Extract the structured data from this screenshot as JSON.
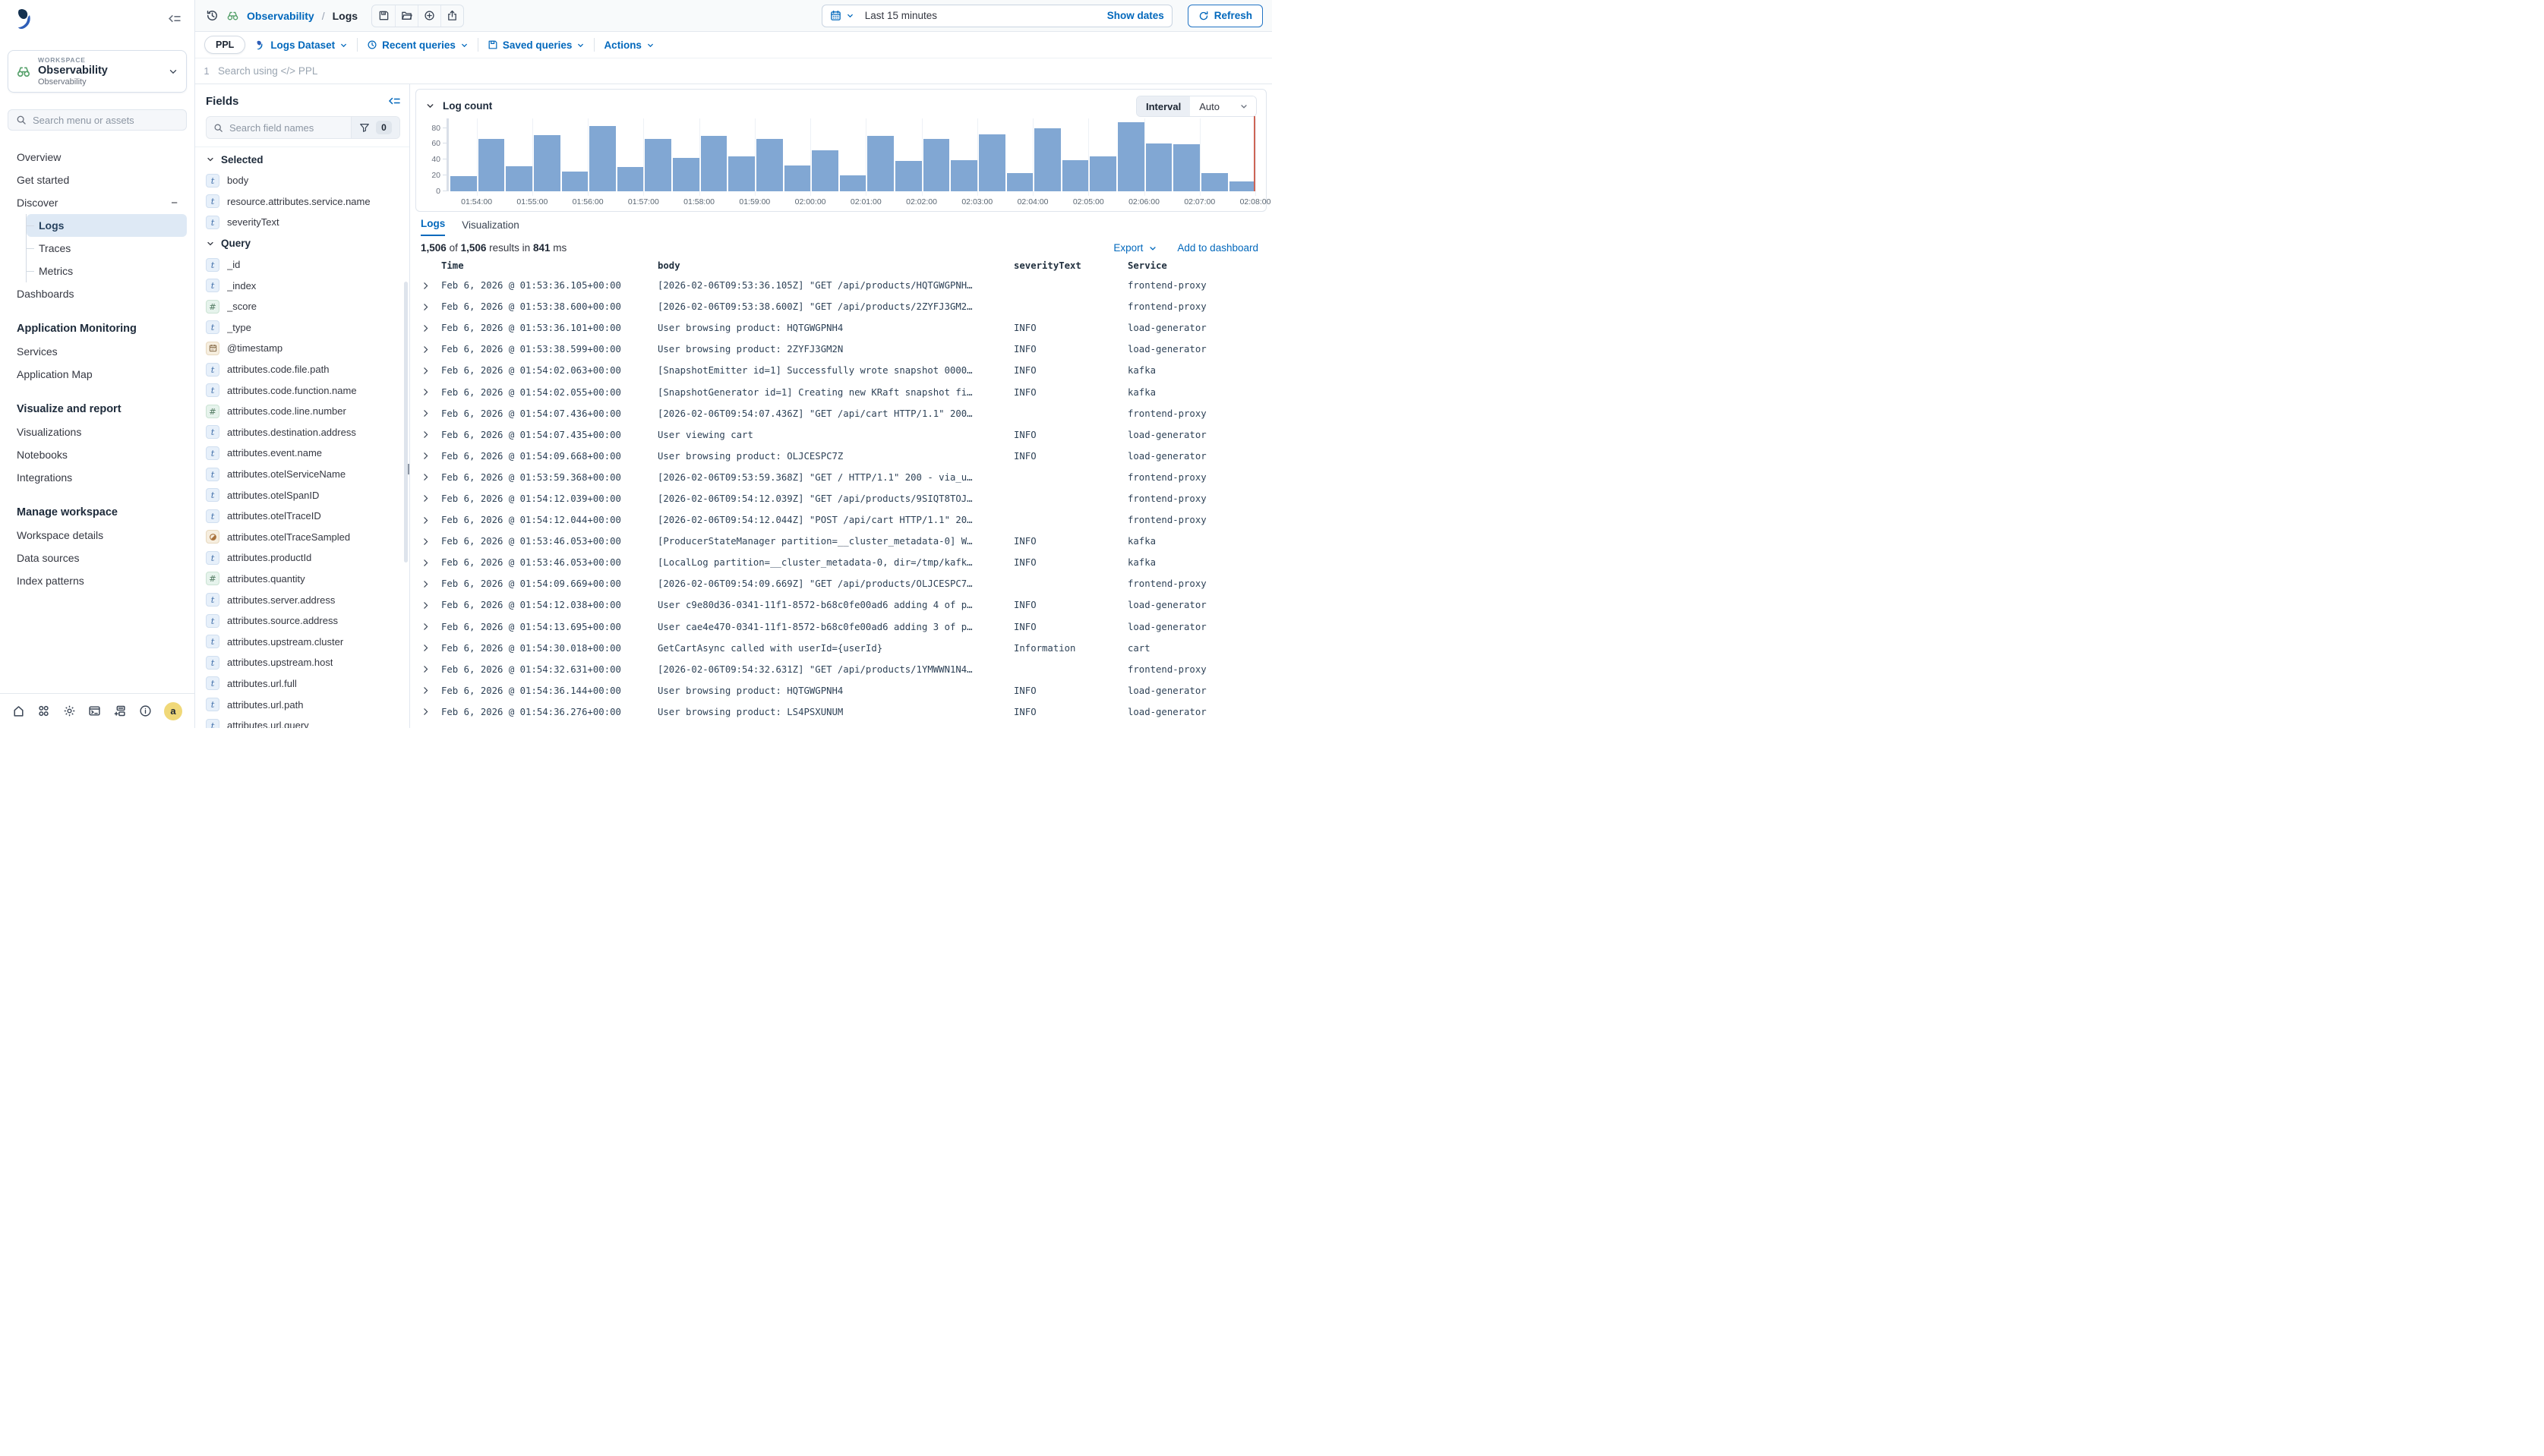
{
  "colors": {
    "accent": "#0268BC",
    "bar": "#81A7D3",
    "time_marker": "#CD6455",
    "selected_nav_bg": "#DEE9F5",
    "avatar_bg": "#F0D878"
  },
  "topbar": {
    "breadcrumb": {
      "app": "Observability",
      "separator": "/",
      "page": "Logs"
    },
    "time_range": "Last 15 minutes",
    "show_dates_label": "Show dates",
    "refresh_label": "Refresh"
  },
  "querybar": {
    "language": "PPL",
    "dataset_label": "Logs Dataset",
    "recent_label": "Recent queries",
    "saved_label": "Saved queries",
    "actions_label": "Actions",
    "line_number": "1",
    "placeholder": "Search using </> PPL"
  },
  "sidebar": {
    "workspace": {
      "eyebrow": "WORKSPACE",
      "name": "Observability",
      "subtitle": "Observability"
    },
    "search_placeholder": "Search menu or assets",
    "nav": [
      {
        "type": "item",
        "label": "Overview"
      },
      {
        "type": "item",
        "label": "Get started"
      },
      {
        "type": "item",
        "label": "Discover",
        "collapse_glyph": "−"
      },
      {
        "type": "subitem",
        "label": "Logs",
        "selected": true
      },
      {
        "type": "subitem",
        "label": "Traces"
      },
      {
        "type": "subitem",
        "label": "Metrics"
      },
      {
        "type": "item",
        "label": "Dashboards"
      },
      {
        "type": "header",
        "label": "Application Monitoring"
      },
      {
        "type": "item",
        "label": "Services"
      },
      {
        "type": "item",
        "label": "Application Map"
      },
      {
        "type": "header",
        "label": "Visualize and report"
      },
      {
        "type": "item",
        "label": "Visualizations"
      },
      {
        "type": "item",
        "label": "Notebooks"
      },
      {
        "type": "item",
        "label": "Integrations"
      },
      {
        "type": "header",
        "label": "Manage workspace"
      },
      {
        "type": "item",
        "label": "Workspace details"
      },
      {
        "type": "item",
        "label": "Data sources"
      },
      {
        "type": "item",
        "label": "Index patterns"
      }
    ],
    "footer_icons": [
      "home-icon",
      "apps-icon",
      "gear-icon",
      "dev-tools-icon",
      "add-panel-icon",
      "info-icon"
    ],
    "avatar_letter": "a"
  },
  "fields_panel": {
    "title": "Fields",
    "search_placeholder": "Search field names",
    "filter_count": "0",
    "sections": [
      {
        "label": "Selected",
        "fields": [
          {
            "type": "t",
            "name": "body"
          },
          {
            "type": "t",
            "name": "resource.attributes.service.name"
          },
          {
            "type": "t",
            "name": "severityText"
          }
        ]
      },
      {
        "label": "Query",
        "fields": [
          {
            "type": "t",
            "name": "_id"
          },
          {
            "type": "t",
            "name": "_index"
          },
          {
            "type": "n",
            "name": "_score"
          },
          {
            "type": "t",
            "name": "_type"
          },
          {
            "type": "d",
            "name": "@timestamp"
          },
          {
            "type": "t",
            "name": "attributes.code.file.path"
          },
          {
            "type": "t",
            "name": "attributes.code.function.name"
          },
          {
            "type": "n",
            "name": "attributes.code.line.number"
          },
          {
            "type": "t",
            "name": "attributes.destination.address"
          },
          {
            "type": "t",
            "name": "attributes.event.name"
          },
          {
            "type": "t",
            "name": "attributes.otelServiceName"
          },
          {
            "type": "t",
            "name": "attributes.otelSpanID"
          },
          {
            "type": "t",
            "name": "attributes.otelTraceID"
          },
          {
            "type": "b",
            "name": "attributes.otelTraceSampled"
          },
          {
            "type": "t",
            "name": "attributes.productId"
          },
          {
            "type": "n",
            "name": "attributes.quantity"
          },
          {
            "type": "t",
            "name": "attributes.server.address"
          },
          {
            "type": "t",
            "name": "attributes.source.address"
          },
          {
            "type": "t",
            "name": "attributes.upstream.cluster"
          },
          {
            "type": "t",
            "name": "attributes.upstream.host"
          },
          {
            "type": "t",
            "name": "attributes.url.full"
          },
          {
            "type": "t",
            "name": "attributes.url.path"
          },
          {
            "type": "t",
            "name": "attributes.url.query"
          },
          {
            "type": "t",
            "name": ""
          }
        ]
      }
    ]
  },
  "chart_data": {
    "type": "bar",
    "title": "Log count",
    "interval_label": "Interval",
    "interval_value": "Auto",
    "bucket_interval": "30s",
    "x_start": "01:53:30",
    "values": [
      19,
      66,
      32,
      71,
      25,
      82,
      31,
      66,
      42,
      70,
      44,
      66,
      33,
      52,
      20,
      70,
      38,
      66,
      39,
      72,
      23,
      80,
      39,
      44,
      87,
      60,
      59,
      23,
      12
    ],
    "x_tick_labels": [
      "01:54:00",
      "01:55:00",
      "01:56:00",
      "01:57:00",
      "01:58:00",
      "01:59:00",
      "02:00:00",
      "02:01:00",
      "02:02:00",
      "02:03:00",
      "02:04:00",
      "02:05:00",
      "02:06:00",
      "02:07:00",
      "02:08:00"
    ],
    "y_ticks": [
      0,
      20,
      40,
      60,
      80
    ],
    "ylim": [
      0,
      92
    ],
    "grid": "minor-vertical",
    "legend": "none"
  },
  "results": {
    "tabs": [
      "Logs",
      "Visualization"
    ],
    "active_tab": "Logs",
    "count": "1,506",
    "total": "1,506",
    "of_text": "of",
    "results_in_text": "results in",
    "duration": "841",
    "ms_text": "ms",
    "export_label": "Export",
    "add_to_dashboard_label": "Add to dashboard"
  },
  "table": {
    "columns": [
      "Time",
      "body",
      "severityText",
      "Service"
    ],
    "rows": [
      {
        "time": "Feb 6, 2026 @ 01:53:36.105+00:00",
        "body": "[2026-02-06T09:53:36.105Z] \"GET /api/products/HQTGWGPNH…",
        "severity": "",
        "service": "frontend-proxy"
      },
      {
        "time": "Feb 6, 2026 @ 01:53:38.600+00:00",
        "body": "[2026-02-06T09:53:38.600Z] \"GET /api/products/2ZYFJ3GM2…",
        "severity": "",
        "service": "frontend-proxy"
      },
      {
        "time": "Feb 6, 2026 @ 01:53:36.101+00:00",
        "body": "User browsing product: HQTGWGPNH4",
        "severity": "INFO",
        "service": "load-generator"
      },
      {
        "time": "Feb 6, 2026 @ 01:53:38.599+00:00",
        "body": "User browsing product: 2ZYFJ3GM2N",
        "severity": "INFO",
        "service": "load-generator"
      },
      {
        "time": "Feb 6, 2026 @ 01:54:02.063+00:00",
        "body": "[SnapshotEmitter id=1] Successfully wrote snapshot 0000…",
        "severity": "INFO",
        "service": "kafka"
      },
      {
        "time": "Feb 6, 2026 @ 01:54:02.055+00:00",
        "body": "[SnapshotGenerator id=1] Creating new KRaft snapshot fi…",
        "severity": "INFO",
        "service": "kafka"
      },
      {
        "time": "Feb 6, 2026 @ 01:54:07.436+00:00",
        "body": "[2026-02-06T09:54:07.436Z] \"GET /api/cart HTTP/1.1\" 200…",
        "severity": "",
        "service": "frontend-proxy"
      },
      {
        "time": "Feb 6, 2026 @ 01:54:07.435+00:00",
        "body": "User viewing cart",
        "severity": "INFO",
        "service": "load-generator"
      },
      {
        "time": "Feb 6, 2026 @ 01:54:09.668+00:00",
        "body": "User browsing product: OLJCESPC7Z",
        "severity": "INFO",
        "service": "load-generator"
      },
      {
        "time": "Feb 6, 2026 @ 01:53:59.368+00:00",
        "body": "[2026-02-06T09:53:59.368Z] \"GET / HTTP/1.1\" 200 - via_u…",
        "severity": "",
        "service": "frontend-proxy"
      },
      {
        "time": "Feb 6, 2026 @ 01:54:12.039+00:00",
        "body": "[2026-02-06T09:54:12.039Z] \"GET /api/products/9SIQT8TOJ…",
        "severity": "",
        "service": "frontend-proxy"
      },
      {
        "time": "Feb 6, 2026 @ 01:54:12.044+00:00",
        "body": "[2026-02-06T09:54:12.044Z] \"POST /api/cart HTTP/1.1\" 20…",
        "severity": "",
        "service": "frontend-proxy"
      },
      {
        "time": "Feb 6, 2026 @ 01:53:46.053+00:00",
        "body": "[ProducerStateManager partition=__cluster_metadata-0] W…",
        "severity": "INFO",
        "service": "kafka"
      },
      {
        "time": "Feb 6, 2026 @ 01:53:46.053+00:00",
        "body": "[LocalLog partition=__cluster_metadata-0, dir=/tmp/kafk…",
        "severity": "INFO",
        "service": "kafka"
      },
      {
        "time": "Feb 6, 2026 @ 01:54:09.669+00:00",
        "body": "[2026-02-06T09:54:09.669Z] \"GET /api/products/OLJCESPC7…",
        "severity": "",
        "service": "frontend-proxy"
      },
      {
        "time": "Feb 6, 2026 @ 01:54:12.038+00:00",
        "body": "User c9e80d36-0341-11f1-8572-b68c0fe00ad6 adding 4 of p…",
        "severity": "INFO",
        "service": "load-generator"
      },
      {
        "time": "Feb 6, 2026 @ 01:54:13.695+00:00",
        "body": "User cae4e470-0341-11f1-8572-b68c0fe00ad6 adding 3 of p…",
        "severity": "INFO",
        "service": "load-generator"
      },
      {
        "time": "Feb 6, 2026 @ 01:54:30.018+00:00",
        "body": "GetCartAsync called with userId={userId}",
        "severity": "Information",
        "service": "cart"
      },
      {
        "time": "Feb 6, 2026 @ 01:54:32.631+00:00",
        "body": "[2026-02-06T09:54:32.631Z] \"GET /api/products/1YMWWN1N4…",
        "severity": "",
        "service": "frontend-proxy"
      },
      {
        "time": "Feb 6, 2026 @ 01:54:36.144+00:00",
        "body": "User browsing product: HQTGWGPNH4",
        "severity": "INFO",
        "service": "load-generator"
      },
      {
        "time": "Feb 6, 2026 @ 01:54:36.276+00:00",
        "body": "User browsing product: LS4PSXUNUM",
        "severity": "INFO",
        "service": "load-generator"
      }
    ]
  }
}
